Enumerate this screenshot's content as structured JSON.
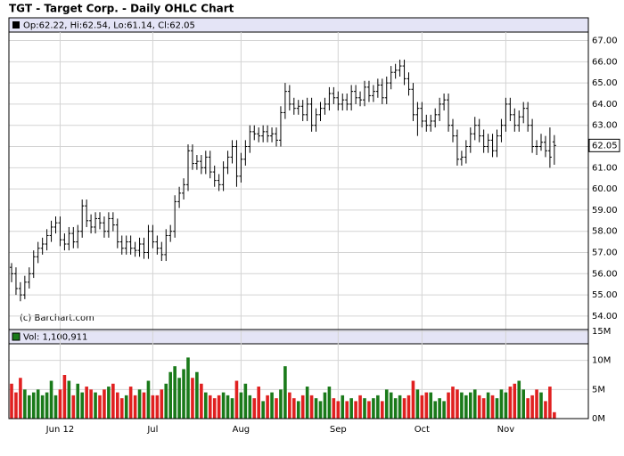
{
  "chart_data": [
    {
      "type": "ohlc",
      "title": "TGT - Target Corp. - Daily OHLC Chart",
      "subtitle": "Op:62.22, Hi:62.54, Lo:61.14, Cl:62.05",
      "note": "(c) Barchart.com",
      "color": "#000000",
      "categories": [
        null,
        null,
        null,
        null,
        null,
        null,
        null,
        null,
        null,
        null,
        null,
        "Jun 12",
        null,
        null,
        null,
        null,
        null,
        null,
        null,
        null,
        null,
        null,
        null,
        null,
        null,
        null,
        null,
        null,
        null,
        null,
        null,
        null,
        "Jul",
        null,
        null,
        null,
        null,
        null,
        null,
        null,
        null,
        null,
        null,
        null,
        null,
        null,
        null,
        null,
        null,
        null,
        null,
        null,
        "Aug",
        null,
        null,
        null,
        null,
        null,
        null,
        null,
        null,
        null,
        null,
        null,
        null,
        null,
        null,
        null,
        null,
        null,
        null,
        null,
        null,
        null,
        "Sep",
        null,
        null,
        null,
        null,
        null,
        null,
        null,
        null,
        null,
        null,
        null,
        null,
        null,
        null,
        null,
        null,
        null,
        null,
        "Oct",
        null,
        null,
        null,
        null,
        null,
        null,
        null,
        null,
        null,
        null,
        null,
        null,
        null,
        null,
        null,
        null,
        null,
        null,
        "Nov",
        null,
        null,
        null,
        null,
        null,
        null,
        null,
        null,
        null,
        null,
        null
      ],
      "open": [
        56.3,
        56.0,
        55.3,
        55.0,
        55.6,
        56.0,
        56.8,
        57.2,
        57.4,
        57.8,
        58.2,
        58.4,
        57.6,
        57.4,
        57.9,
        57.5,
        58.0,
        59.2,
        58.5,
        58.2,
        58.6,
        58.4,
        58.0,
        58.6,
        58.3,
        57.5,
        57.2,
        57.5,
        57.2,
        57.1,
        57.4,
        57.0,
        58.0,
        57.5,
        57.2,
        56.9,
        57.8,
        58.0,
        59.4,
        59.8,
        60.2,
        61.8,
        61.2,
        61.3,
        61.0,
        61.5,
        60.8,
        60.4,
        60.2,
        61.0,
        61.5,
        62.0,
        60.6,
        61.4,
        62.0,
        62.7,
        62.6,
        62.5,
        62.7,
        62.5,
        62.6,
        62.3,
        63.6,
        64.6,
        64.0,
        63.8,
        63.9,
        63.5,
        64.0,
        63.0,
        63.5,
        63.8,
        64.0,
        64.5,
        64.3,
        64.0,
        64.2,
        64.0,
        64.6,
        64.3,
        64.2,
        64.8,
        64.4,
        64.6,
        64.9,
        64.3,
        65.0,
        65.5,
        65.6,
        65.8,
        65.2,
        64.7,
        63.5,
        63.8,
        63.2,
        63.0,
        63.2,
        63.5,
        64.0,
        64.2,
        63.0,
        62.5,
        61.4,
        61.5,
        62.0,
        62.6,
        63.0,
        62.5,
        62.0,
        62.3,
        61.8,
        62.5,
        63.0,
        64.0,
        63.5,
        63.0,
        63.4,
        63.8,
        63.0,
        62.0,
        62.0,
        62.2,
        61.8,
        62.22
      ],
      "high": [
        56.5,
        56.3,
        55.6,
        55.9,
        56.3,
        57.1,
        57.5,
        57.7,
        58.1,
        58.5,
        58.7,
        58.7,
        57.9,
        58.2,
        58.2,
        58.3,
        59.5,
        59.5,
        58.8,
        58.9,
        58.9,
        58.7,
        58.9,
        58.9,
        58.6,
        57.8,
        57.8,
        57.8,
        57.5,
        57.7,
        57.7,
        58.3,
        58.3,
        57.8,
        57.5,
        58.1,
        58.3,
        59.7,
        60.1,
        60.5,
        62.1,
        62.1,
        61.6,
        61.6,
        61.8,
        61.8,
        61.1,
        60.7,
        61.3,
        61.8,
        62.3,
        62.3,
        61.7,
        62.3,
        63.0,
        63.0,
        62.9,
        63.0,
        63.0,
        62.9,
        62.9,
        63.9,
        65.0,
        64.9,
        64.3,
        64.2,
        64.2,
        64.3,
        64.3,
        63.8,
        64.1,
        64.3,
        64.8,
        64.8,
        64.6,
        64.5,
        64.5,
        64.9,
        64.9,
        64.6,
        65.1,
        65.1,
        64.9,
        65.2,
        65.2,
        65.3,
        65.8,
        65.9,
        66.1,
        66.1,
        65.5,
        65.0,
        64.1,
        64.1,
        63.5,
        63.5,
        63.8,
        64.3,
        64.5,
        64.5,
        63.3,
        62.8,
        61.8,
        62.3,
        62.9,
        63.4,
        63.3,
        62.8,
        62.6,
        62.6,
        62.8,
        63.3,
        64.3,
        64.3,
        63.8,
        63.7,
        64.1,
        64.1,
        63.3,
        62.3,
        62.6,
        62.5,
        62.9,
        62.54
      ],
      "low": [
        55.6,
        55.0,
        54.7,
        54.8,
        55.3,
        55.8,
        56.5,
        56.9,
        57.1,
        57.5,
        57.9,
        57.3,
        57.1,
        57.1,
        57.2,
        57.2,
        57.7,
        58.2,
        57.9,
        57.9,
        58.1,
        57.7,
        57.7,
        58.0,
        57.2,
        56.9,
        56.9,
        56.9,
        56.8,
        56.8,
        56.7,
        56.7,
        57.2,
        56.9,
        56.6,
        56.6,
        57.5,
        57.7,
        59.1,
        59.5,
        59.9,
        60.9,
        60.9,
        60.7,
        60.7,
        60.5,
        60.1,
        59.9,
        59.9,
        60.7,
        61.2,
        60.1,
        60.3,
        61.1,
        61.7,
        62.3,
        62.2,
        62.2,
        62.2,
        62.2,
        62.0,
        62.0,
        63.3,
        63.7,
        63.5,
        63.5,
        63.2,
        63.2,
        62.7,
        62.7,
        63.2,
        63.5,
        63.7,
        64.0,
        63.7,
        63.7,
        63.7,
        63.7,
        64.0,
        63.9,
        63.9,
        64.1,
        64.1,
        64.3,
        64.0,
        64.0,
        64.7,
        65.2,
        65.3,
        64.9,
        64.4,
        63.2,
        62.5,
        62.9,
        62.7,
        62.7,
        62.9,
        63.2,
        63.7,
        62.7,
        62.2,
        61.1,
        61.1,
        61.2,
        61.7,
        62.3,
        62.2,
        61.7,
        61.7,
        61.5,
        61.5,
        62.2,
        62.7,
        63.2,
        62.7,
        62.7,
        63.1,
        62.7,
        61.7,
        61.6,
        61.8,
        61.5,
        61.0,
        61.14
      ],
      "close": [
        56.0,
        55.3,
        55.0,
        55.6,
        56.0,
        56.8,
        57.2,
        57.4,
        57.8,
        58.2,
        58.4,
        57.6,
        57.4,
        57.9,
        57.5,
        58.0,
        59.2,
        58.5,
        58.2,
        58.6,
        58.4,
        58.0,
        58.6,
        58.3,
        57.5,
        57.2,
        57.5,
        57.2,
        57.1,
        57.4,
        57.0,
        58.0,
        57.5,
        57.2,
        56.9,
        57.8,
        58.0,
        59.4,
        59.8,
        60.2,
        61.8,
        61.2,
        61.3,
        61.0,
        61.5,
        60.8,
        60.4,
        60.2,
        61.0,
        61.5,
        62.0,
        60.6,
        61.4,
        62.0,
        62.7,
        62.6,
        62.5,
        62.7,
        62.5,
        62.6,
        62.3,
        63.6,
        64.6,
        64.0,
        63.8,
        63.9,
        63.5,
        64.0,
        63.0,
        63.5,
        63.8,
        64.0,
        64.5,
        64.3,
        64.0,
        64.2,
        64.0,
        64.6,
        64.3,
        64.2,
        64.8,
        64.4,
        64.6,
        64.9,
        64.3,
        65.0,
        65.5,
        65.6,
        65.8,
        65.2,
        64.7,
        63.5,
        63.8,
        63.2,
        63.0,
        63.2,
        63.5,
        64.0,
        64.2,
        63.0,
        62.5,
        61.4,
        61.5,
        62.0,
        62.6,
        63.0,
        62.5,
        62.0,
        62.3,
        61.8,
        62.5,
        63.0,
        64.0,
        63.5,
        63.0,
        63.4,
        63.8,
        63.0,
        62.0,
        62.0,
        62.2,
        61.8,
        61.5,
        62.05
      ],
      "last_value": {
        "value": 62.05,
        "label": "62.05"
      },
      "ylim": [
        53.45,
        67.4
      ],
      "yticks": [
        {
          "value": 54,
          "label": "54.00"
        },
        {
          "value": 55,
          "label": "55.00"
        },
        {
          "value": 56,
          "label": "56.00"
        },
        {
          "value": 57,
          "label": "57.00"
        },
        {
          "value": 58,
          "label": "58.00"
        },
        {
          "value": 59,
          "label": "59.00"
        },
        {
          "value": 60,
          "label": "60.00"
        },
        {
          "value": 61,
          "label": "61.00"
        },
        {
          "value": 62,
          "label": "62.00"
        },
        {
          "value": 63,
          "label": "63.00"
        },
        {
          "value": 64,
          "label": "64.00"
        },
        {
          "value": 65,
          "label": "65.00"
        },
        {
          "value": 66,
          "label": "66.00"
        },
        {
          "value": 67,
          "label": "67.00"
        }
      ],
      "grid": true
    },
    {
      "type": "bar",
      "title": "Vol: 1,100,911",
      "up_color": "#1a7a1a",
      "down_color": "#e02020",
      "values": [
        6.0,
        4.5,
        7.0,
        5.0,
        4.0,
        4.5,
        5.0,
        4.0,
        4.5,
        6.5,
        4.0,
        5.0,
        7.5,
        6.5,
        4.0,
        6.0,
        4.5,
        5.5,
        5.0,
        4.5,
        4.0,
        5.0,
        5.5,
        6.0,
        4.5,
        3.5,
        4.0,
        5.5,
        4.0,
        5.0,
        4.5,
        6.5,
        4.0,
        4.0,
        5.0,
        6.0,
        8.0,
        9.0,
        7.0,
        8.5,
        10.5,
        7.0,
        8.0,
        6.0,
        4.5,
        4.0,
        3.5,
        4.0,
        4.5,
        4.0,
        3.5,
        6.5,
        4.5,
        6.0,
        4.0,
        3.5,
        5.5,
        3.0,
        4.0,
        4.5,
        3.5,
        5.0,
        9.0,
        4.5,
        3.5,
        3.0,
        4.0,
        5.5,
        4.0,
        3.5,
        3.0,
        4.5,
        5.5,
        3.5,
        3.0,
        4.0,
        3.0,
        3.5,
        3.0,
        4.0,
        3.5,
        3.0,
        3.5,
        4.0,
        3.0,
        5.0,
        4.5,
        3.5,
        4.0,
        3.5,
        4.0,
        6.5,
        5.0,
        4.0,
        4.5,
        4.5,
        3.0,
        3.5,
        3.0,
        4.5,
        5.5,
        5.0,
        4.5,
        4.0,
        4.5,
        5.0,
        4.0,
        3.5,
        4.5,
        4.0,
        3.5,
        5.0,
        4.5,
        5.5,
        6.0,
        6.5,
        5.0,
        3.5,
        4.0,
        5.0,
        4.5,
        3.0,
        5.5,
        1.100911
      ],
      "ylim": [
        0,
        15
      ],
      "yticks": [
        {
          "value": 0,
          "label": "0M"
        },
        {
          "value": 5,
          "label": "5M"
        },
        {
          "value": 10,
          "label": "10M"
        },
        {
          "value": 15,
          "label": "15M"
        }
      ],
      "grid": true
    }
  ]
}
